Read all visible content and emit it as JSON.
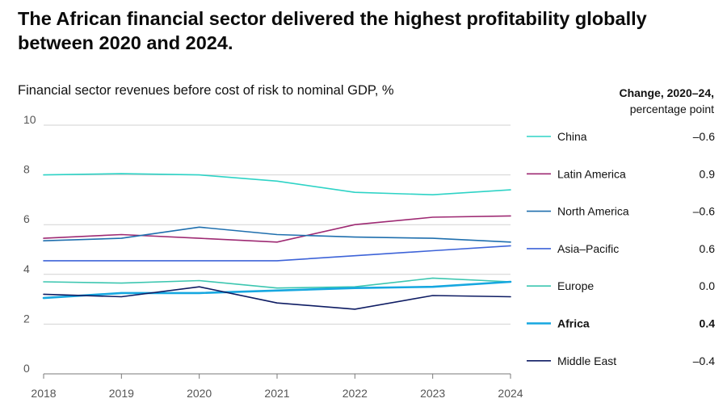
{
  "header": {
    "title": "The African financial sector delivered the highest profitability globally between 2020 and 2024.",
    "subtitle": "Financial sector revenues before cost of risk  to nominal GDP,",
    "unit": "%",
    "change_title": "Change, 2020–24,",
    "change_subtitle": "percentage point"
  },
  "chart_data": {
    "type": "line",
    "title": "Financial sector revenues before cost of risk  to nominal GDP, %",
    "xlabel": "",
    "ylabel": "",
    "x": [
      2018,
      2019,
      2020,
      2021,
      2022,
      2023,
      2024
    ],
    "x_tick_labels": [
      "2018",
      "2019",
      "2020",
      "2021",
      "2022",
      "2023",
      "2024"
    ],
    "ylim": [
      0,
      10
    ],
    "y_ticks": [
      0,
      2,
      4,
      6,
      8,
      10
    ],
    "y_tick_labels": [
      "0",
      "2",
      "4",
      "6",
      "8",
      "10"
    ],
    "grid": true,
    "legend_position": "right",
    "series": [
      {
        "name": "China",
        "color": "#2ed3c6",
        "change": "–0.6",
        "bold": false,
        "values": [
          8.0,
          8.05,
          8.0,
          7.75,
          7.3,
          7.2,
          7.4
        ]
      },
      {
        "name": "Latin America",
        "color": "#9e2a73",
        "change": "0.9",
        "bold": false,
        "values": [
          5.45,
          5.6,
          5.45,
          5.3,
          6.0,
          6.3,
          6.35
        ]
      },
      {
        "name": "North America",
        "color": "#1f6fae",
        "change": "–0.6",
        "bold": false,
        "values": [
          5.35,
          5.45,
          5.9,
          5.6,
          5.5,
          5.45,
          5.3
        ]
      },
      {
        "name": "Asia–Pacific",
        "color": "#3d63d8",
        "change": "0.6",
        "bold": false,
        "values": [
          4.55,
          4.55,
          4.55,
          4.55,
          4.75,
          4.95,
          5.15
        ]
      },
      {
        "name": "Europe",
        "color": "#3cc6b0",
        "change": "0.0",
        "bold": false,
        "values": [
          3.7,
          3.65,
          3.75,
          3.45,
          3.5,
          3.85,
          3.7
        ]
      },
      {
        "name": "Africa",
        "color": "#16a7e0",
        "change": "0.4",
        "bold": true,
        "values": [
          3.05,
          3.25,
          3.25,
          3.35,
          3.45,
          3.5,
          3.7
        ]
      },
      {
        "name": "Middle East",
        "color": "#0e1c63",
        "change": "–0.4",
        "bold": false,
        "values": [
          3.2,
          3.1,
          3.5,
          2.85,
          2.6,
          3.15,
          3.1
        ]
      }
    ]
  }
}
